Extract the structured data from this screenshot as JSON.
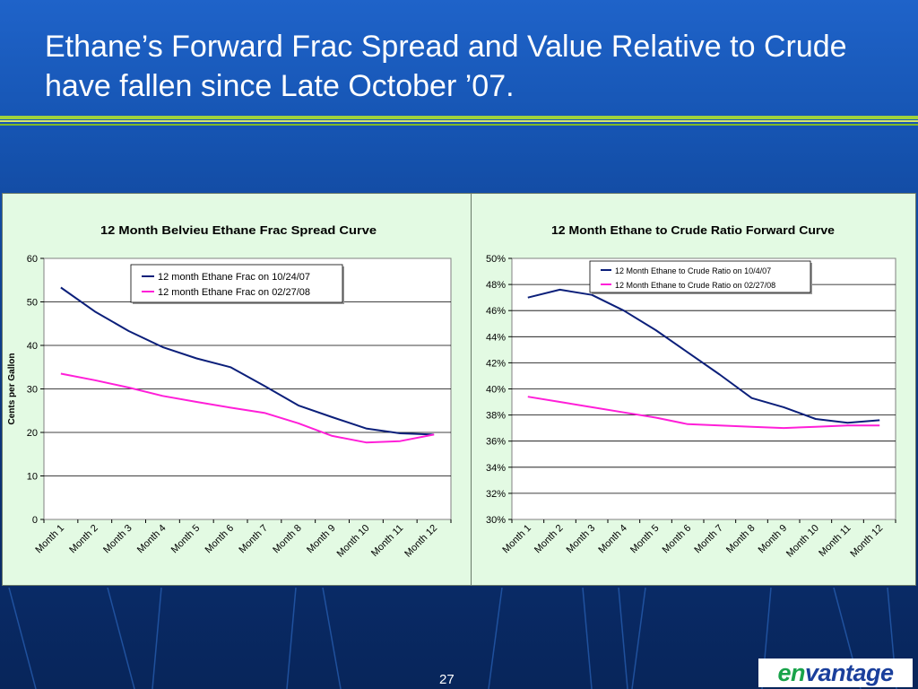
{
  "slide": {
    "title": "Ethane’s Forward Frac Spread and Value Relative to Crude have fallen since Late October ’07.",
    "page_number": "27",
    "logo_text": "envantage",
    "colors": {
      "background": "#1655b3",
      "rule": "#9fd23c",
      "panel": "#e3fae3",
      "logo_green": "#19a34a",
      "logo_blue": "#1a3f9c"
    }
  },
  "chart_data": [
    {
      "type": "line",
      "title": "12 Month Belvieu Ethane Frac Spread Curve",
      "xlabel": "",
      "ylabel": "Cents per Gallon",
      "categories": [
        "Month 1",
        "Month 2",
        "Month 3",
        "Month 4",
        "Month 5",
        "Month 6",
        "Month 7",
        "Month 8",
        "Month 9",
        "Month 10",
        "Month 11",
        "Month 12"
      ],
      "ylim": [
        0,
        60
      ],
      "yticks": [
        0,
        10,
        20,
        30,
        40,
        50,
        60
      ],
      "ytick_labels": [
        "0",
        "10",
        "20",
        "30",
        "40",
        "50",
        "60"
      ],
      "grid": "horizontal",
      "legend_position": "top",
      "series": [
        {
          "name": "12 month Ethane Frac on 10/24/07",
          "color": "#0b1f7a",
          "values": [
            53.3,
            47.8,
            43.3,
            39.6,
            37.0,
            35.0,
            30.7,
            26.2,
            23.5,
            20.9,
            19.8,
            19.5
          ]
        },
        {
          "name": "12 month Ethane Frac on 02/27/08",
          "color": "#ff1fd8",
          "values": [
            33.5,
            32.0,
            30.3,
            28.4,
            27.0,
            25.7,
            24.5,
            22.1,
            19.2,
            17.7,
            18.0,
            19.5
          ]
        }
      ]
    },
    {
      "type": "line",
      "title": "12 Month Ethane to Crude Ratio Forward Curve",
      "xlabel": "",
      "ylabel": "",
      "categories": [
        "Month 1",
        "Month 2",
        "Month 3",
        "Month 4",
        "Month 5",
        "Month 6",
        "Month 7",
        "Month 8",
        "Month 9",
        "Month 10",
        "Month 11",
        "Month 12"
      ],
      "ylim": [
        0.3,
        0.5
      ],
      "yticks": [
        0.3,
        0.32,
        0.34,
        0.36,
        0.38,
        0.4,
        0.42,
        0.44,
        0.46,
        0.48,
        0.5
      ],
      "ytick_labels": [
        "30%",
        "32%",
        "34%",
        "36%",
        "38%",
        "40%",
        "42%",
        "44%",
        "46%",
        "48%",
        "50%"
      ],
      "grid": "horizontal",
      "legend_position": "top",
      "series": [
        {
          "name": "12 Month Ethane to Crude Ratio on 10/4/07",
          "color": "#0b1f7a",
          "values": [
            0.47,
            0.476,
            0.472,
            0.46,
            0.445,
            0.428,
            0.411,
            0.393,
            0.386,
            0.377,
            0.374,
            0.376
          ]
        },
        {
          "name": "12 Month Ethane to Crude Ratio on 02/27/08",
          "color": "#ff1fd8",
          "values": [
            0.394,
            0.39,
            0.386,
            0.382,
            0.378,
            0.373,
            0.372,
            0.371,
            0.37,
            0.371,
            0.372,
            0.372
          ]
        }
      ]
    }
  ]
}
